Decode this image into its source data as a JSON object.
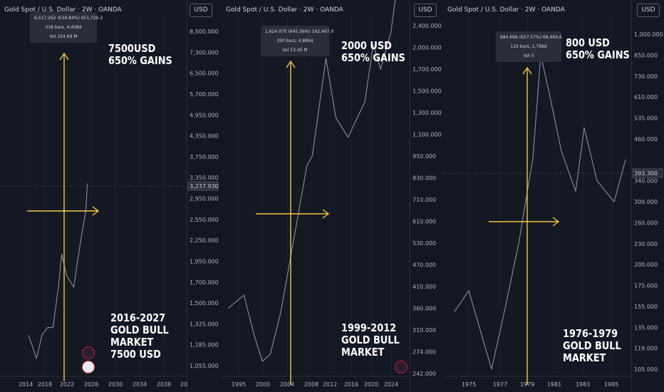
{
  "chart_data": [
    {
      "type": "line",
      "title": "Gold Spot / U.S. Dollar · 2W · OANDA",
      "currency": "USD",
      "y_ticks": [
        "8,500.000",
        "7,300.000",
        "6,500.000",
        "5,700.000",
        "4,950.000",
        "4,350.000",
        "3,750.000",
        "3,350.000",
        "2,950.000",
        "2,550.000",
        "2,250.000",
        "1,950.000",
        "1,700.000",
        "1,500.000",
        "1,325.000",
        "1,185.000",
        "1,055.000"
      ],
      "x_ticks": [
        "2014",
        "2018",
        "2022",
        "2026",
        "2030",
        "2034",
        "2038",
        "20"
      ],
      "current_price": "3,237.930",
      "tooltip": [
        "6,517.262 (634.84%) 651,726.2",
        "318 bars, 4,438d",
        "Vol 254.69 M"
      ],
      "annotation_top": [
        "7500USD",
        "650% GAINS"
      ],
      "annotation_bottom": [
        "2016-2027",
        "GOLD BULL",
        "MARKET",
        "7500 USD"
      ],
      "series": [
        {
          "x": [
            2014.5,
            2015.5,
            2016,
            2017,
            2018,
            2019,
            2020,
            2020.6,
            2021.5,
            2022.8,
            2023.5,
            2024.3,
            2025.0,
            2025.3
          ],
          "y": [
            1250,
            1150,
            1100,
            1250,
            1300,
            1300,
            1650,
            2050,
            1780,
            1650,
            1950,
            2350,
            2700,
            3237
          ]
        }
      ]
    },
    {
      "type": "line",
      "title": "Gold Spot / U.S. Dollar · 2W · OANDA",
      "currency": "USD",
      "y_ticks": [
        "2,400.000",
        "2,000.000",
        "1,700.000",
        "1,500.000",
        "1,300.000",
        "1,100.000",
        "950.000",
        "830.000",
        "710.000",
        "610.000",
        "530.000",
        "470.000",
        "410.000",
        "360.000",
        "310.000",
        "274.000",
        "242.000"
      ],
      "x_ticks": [
        "1995",
        "2000",
        "2004",
        "2008",
        "2012",
        "2016",
        "2020",
        "2024"
      ],
      "tooltip": [
        "1,624.970 (645.56%) 162,497.0",
        "350 bars, 4,886d",
        "Vol 53.45 M"
      ],
      "annotation_top": [
        "2000 USD",
        "650% GAINS"
      ],
      "annotation_bottom": [
        "1999-2012",
        "GOLD BULL",
        "MARKET"
      ],
      "series": [
        {
          "x": [
            1993,
            1996,
            1998,
            1999.5,
            2001,
            2003,
            2006,
            2008,
            2009,
            2011.6,
            2013.5,
            2015.8,
            2019,
            2020.6,
            2022,
            2024,
            2025.2
          ],
          "y": [
            360,
            390,
            300,
            260,
            270,
            350,
            600,
            900,
            950,
            1850,
            1250,
            1080,
            1400,
            2050,
            1700,
            2300,
            3200
          ]
        }
      ]
    },
    {
      "type": "line",
      "title": "Gold Spot / U.S. Dollar · 2W · OANDA",
      "currency": "USD",
      "y_ticks": [
        "1,000.000",
        "850.000",
        "730.000",
        "610.000",
        "535.000",
        "460.000",
        "393.300",
        "340.000",
        "300.000",
        "260.000",
        "230.000",
        "200.000",
        "175.000",
        "155.000",
        "135.000",
        "119.000",
        "105.000"
      ],
      "x_ticks": [
        "1975",
        "1977",
        "1979",
        "1981",
        "1983",
        "1985"
      ],
      "current_price": "393.300",
      "tooltip": [
        "684.696 (657.57%) 68,469.6",
        "129 bars, 1,799d",
        "Vol 0"
      ],
      "annotation_top": [
        "800 USD",
        "650% GAINS"
      ],
      "annotation_bottom": [
        "1976-1979",
        "GOLD BULL",
        "MARKET"
      ],
      "series": [
        {
          "x": [
            1974,
            1975,
            1976.6,
            1977.5,
            1978.5,
            1979.5,
            1980.05,
            1980.6,
            1981.5,
            1982.5,
            1983.1,
            1984,
            1985.2,
            1986
          ],
          "y": [
            150,
            170,
            105,
            150,
            230,
            400,
            850,
            650,
            420,
            320,
            500,
            340,
            300,
            393
          ]
        }
      ]
    }
  ]
}
